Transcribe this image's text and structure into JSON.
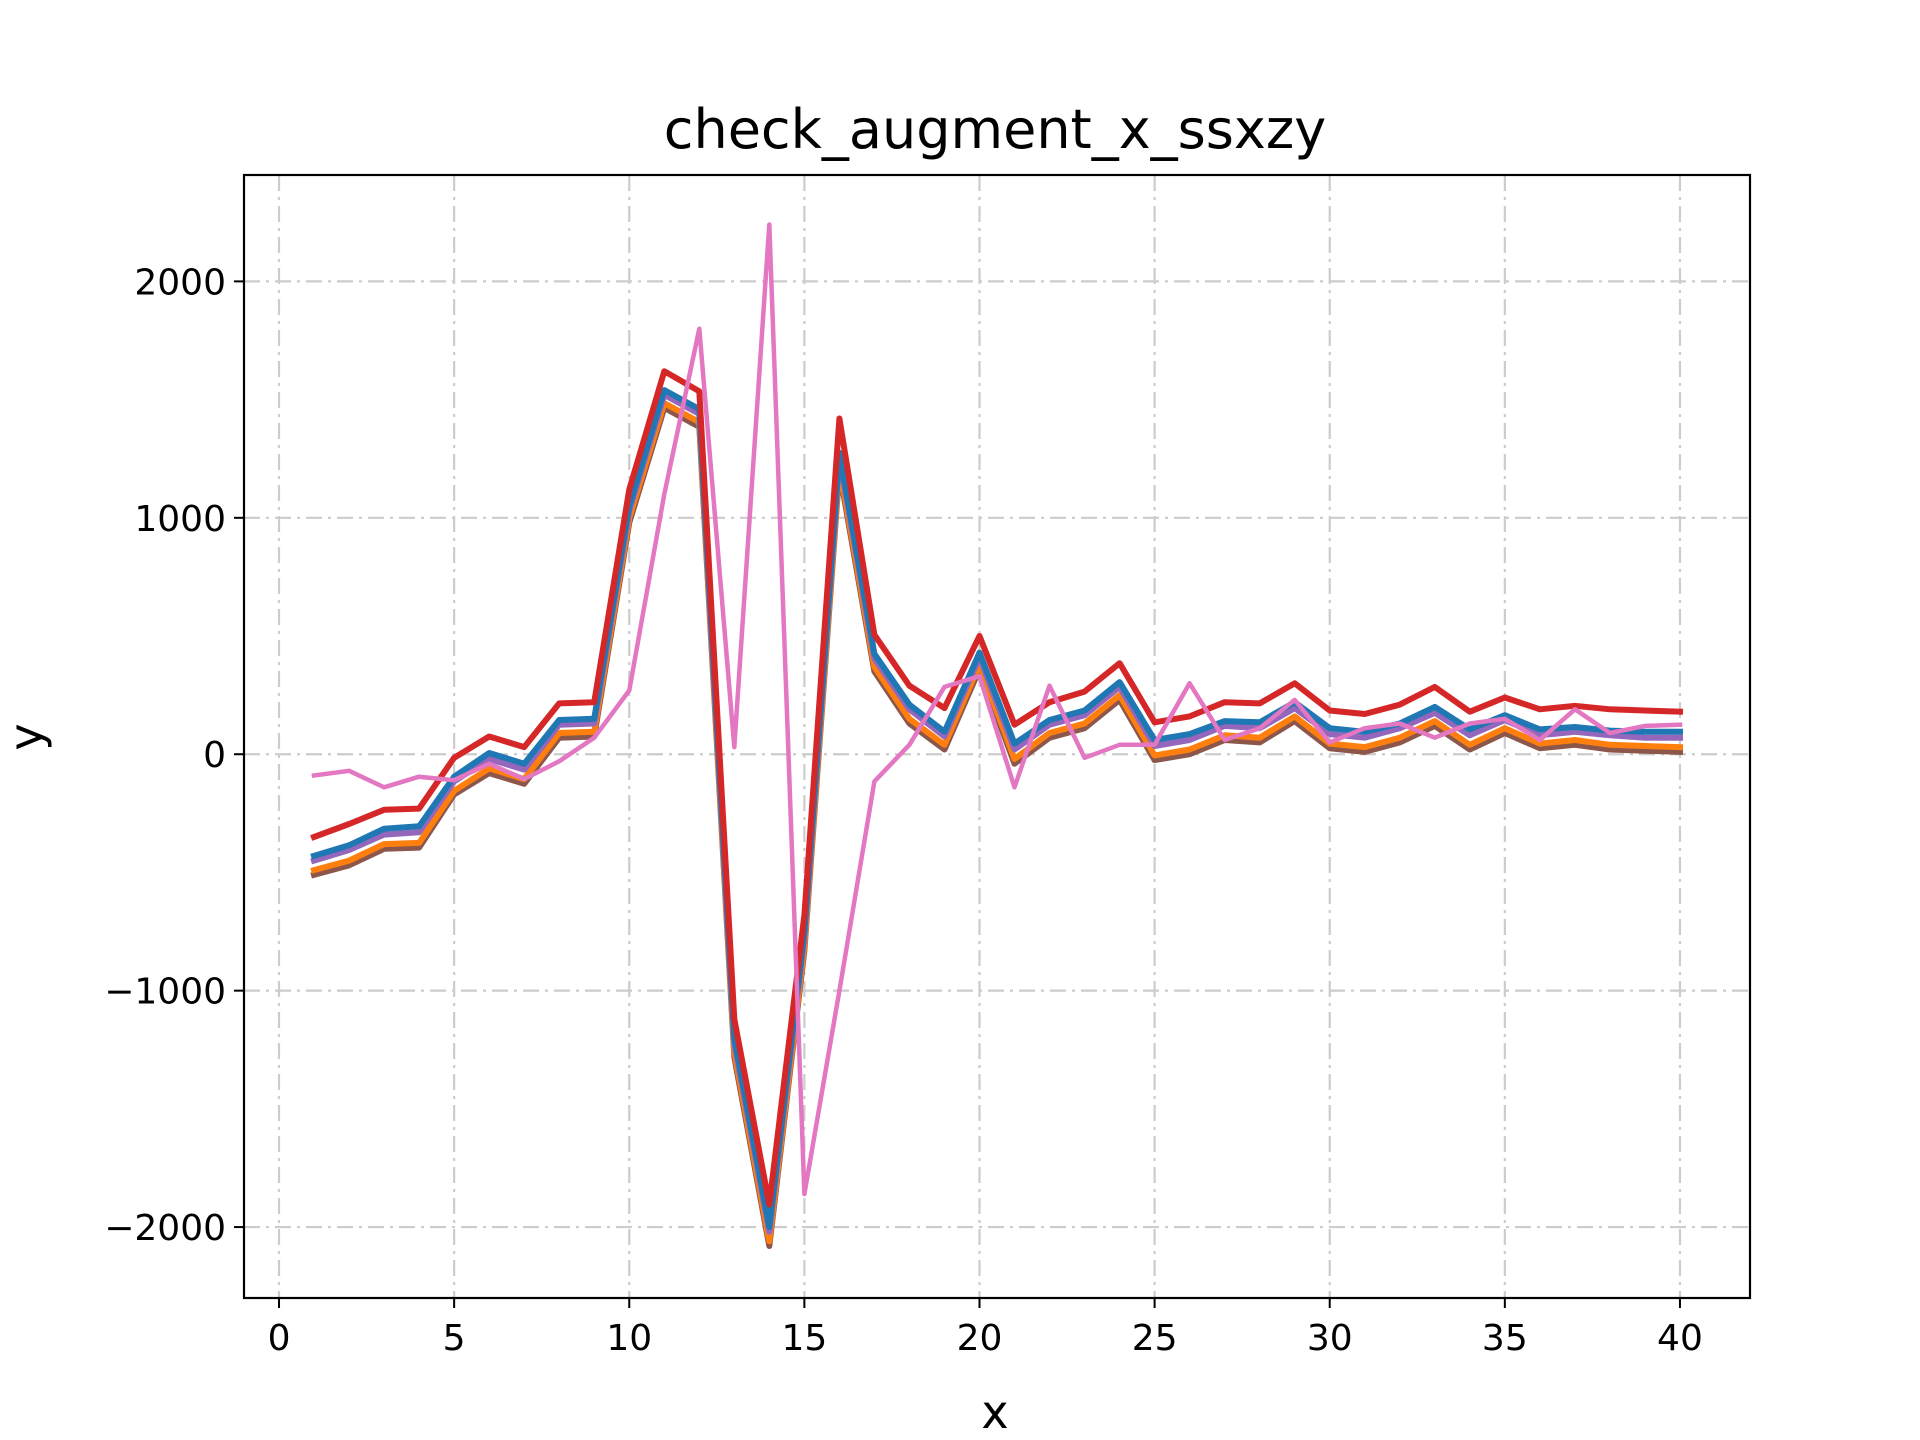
{
  "chart_data": {
    "type": "line",
    "title": "check_augment_x_ssxzy",
    "xlabel": "x",
    "ylabel": "y",
    "xlim": [
      -1,
      42
    ],
    "ylim": [
      -2300,
      2450
    ],
    "xticks": [
      0,
      5,
      10,
      15,
      20,
      25,
      30,
      35,
      40
    ],
    "yticks": [
      -2000,
      -1000,
      0,
      1000,
      2000
    ],
    "grid": true,
    "x": [
      1,
      2,
      3,
      4,
      5,
      6,
      7,
      8,
      9,
      10,
      11,
      12,
      13,
      14,
      15,
      16,
      17,
      18,
      19,
      20,
      21,
      22,
      23,
      24,
      25,
      26,
      27,
      28,
      29,
      30,
      31,
      32,
      33,
      34,
      35,
      36,
      37,
      38,
      39,
      40
    ],
    "series": [
      {
        "color": "#8c564b",
        "values": [
          -510,
          -470,
          -400,
          -395,
          -170,
          -80,
          -125,
          70,
          75,
          980,
          1465,
          1385,
          -1280,
          -2080,
          -830,
          1200,
          350,
          130,
          20,
          360,
          -40,
          70,
          110,
          230,
          -25,
          0,
          60,
          50,
          140,
          25,
          10,
          50,
          120,
          20,
          90,
          25,
          40,
          20,
          15,
          10
        ]
      },
      {
        "color": "#ff7f0e",
        "values": [
          -490,
          -450,
          -380,
          -375,
          -155,
          -60,
          -105,
          90,
          95,
          1000,
          1485,
          1405,
          -1260,
          -2060,
          -810,
          1220,
          370,
          150,
          40,
          380,
          -20,
          90,
          130,
          250,
          -5,
          20,
          80,
          70,
          160,
          45,
          30,
          70,
          140,
          40,
          110,
          45,
          60,
          40,
          35,
          30
        ]
      },
      {
        "color": "#9467bd",
        "values": [
          -450,
          -405,
          -340,
          -330,
          -115,
          -20,
          -65,
          125,
          130,
          1030,
          1520,
          1440,
          -1225,
          -2020,
          -770,
          1255,
          405,
          190,
          75,
          410,
          20,
          125,
          165,
          285,
          35,
          60,
          120,
          110,
          195,
          85,
          70,
          110,
          175,
          80,
          145,
          80,
          95,
          80,
          70,
          70
        ]
      },
      {
        "color": "#1f77b4",
        "values": [
          -430,
          -385,
          -315,
          -305,
          -95,
          5,
          -40,
          145,
          150,
          1050,
          1540,
          1460,
          -1200,
          -2000,
          -750,
          1275,
          425,
          210,
          95,
          430,
          45,
          145,
          185,
          305,
          60,
          85,
          140,
          135,
          220,
          110,
          95,
          130,
          200,
          105,
          165,
          105,
          115,
          100,
          95,
          95
        ]
      },
      {
        "color": "#d62728",
        "values": [
          -350,
          -295,
          -235,
          -230,
          -15,
          75,
          30,
          215,
          220,
          1120,
          1620,
          1535,
          -1120,
          -1905,
          -680,
          1420,
          505,
          290,
          195,
          500,
          125,
          220,
          265,
          385,
          135,
          160,
          220,
          215,
          300,
          185,
          170,
          210,
          285,
          180,
          240,
          190,
          205,
          190,
          185,
          180
        ]
      },
      {
        "color": "#e377c2",
        "values": [
          -90,
          -70,
          -140,
          -95,
          -110,
          -40,
          -105,
          -30,
          70,
          270,
          1100,
          1800,
          30,
          2240,
          -1860,
          -1000,
          -115,
          40,
          285,
          330,
          -140,
          290,
          -15,
          40,
          40,
          300,
          60,
          110,
          230,
          50,
          110,
          130,
          70,
          130,
          150,
          60,
          190,
          90,
          120,
          125
        ]
      }
    ]
  }
}
